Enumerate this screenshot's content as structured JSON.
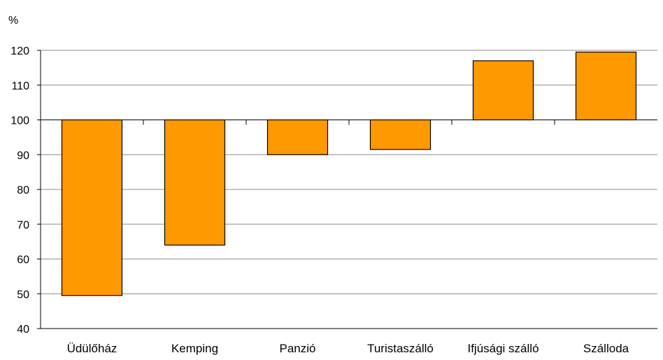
{
  "chart_data": {
    "type": "bar",
    "baseline": 100,
    "unit": "%",
    "categories": [
      "Üdülőház",
      "Kemping",
      "Panzió",
      "Turistaszálló",
      "Ifjúsági szálló",
      "Szálloda"
    ],
    "values": [
      49.5,
      64,
      90,
      91.5,
      117,
      119.5
    ],
    "ylim": [
      40,
      120
    ],
    "yticks": [
      40,
      50,
      60,
      70,
      80,
      90,
      100,
      110,
      120
    ],
    "grid": true,
    "legend": "none",
    "bar_color": "#FF9900"
  }
}
